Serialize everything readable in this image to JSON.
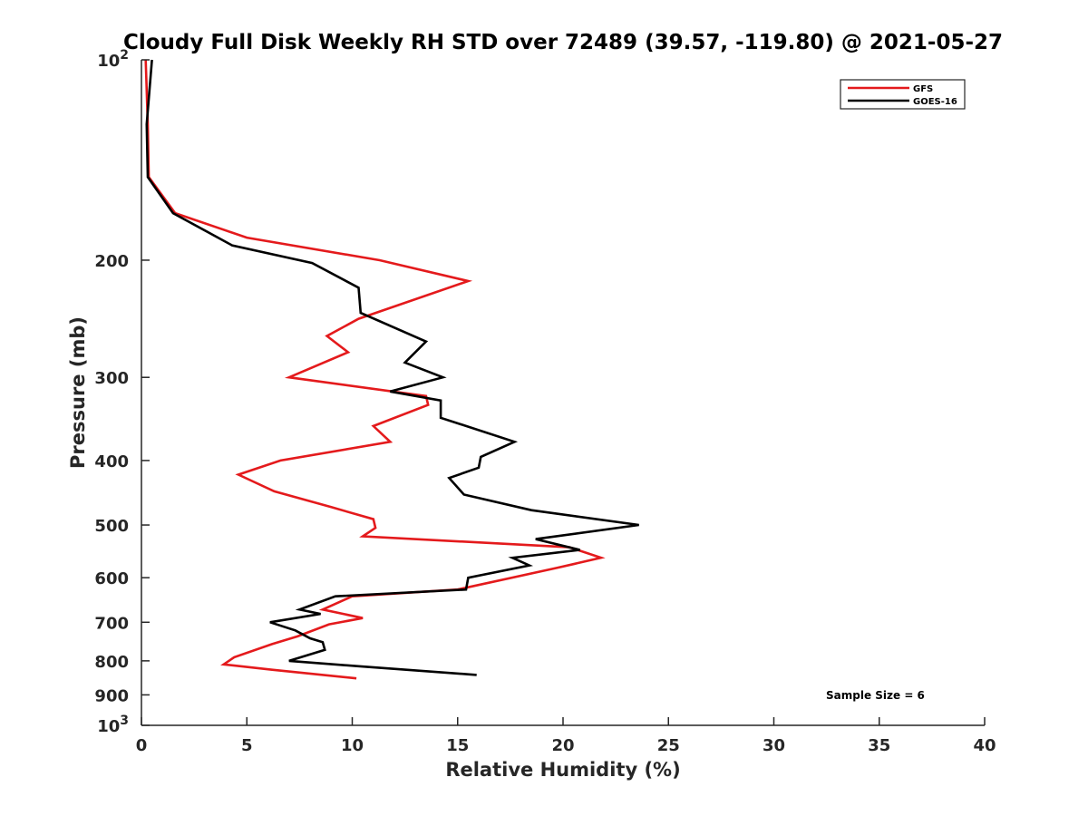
{
  "chart_data": {
    "type": "line",
    "title": "Cloudy Full Disk Weekly RH STD over 72489 (39.57, -119.80) @ 2021-05-27",
    "xlabel": "Relative Humidity (%)",
    "ylabel": "Pressure (mb)",
    "xlim": [
      0,
      40
    ],
    "ylim": [
      100,
      1000
    ],
    "y_scale": "log",
    "y_reversed": true,
    "grid": false,
    "legend_position": "top-right",
    "x_ticks": [
      "0",
      "5",
      "10",
      "15",
      "20",
      "25",
      "30",
      "35",
      "40"
    ],
    "y_ticks": [
      {
        "value": 100,
        "base": "10",
        "exp": "2"
      },
      {
        "value": 200,
        "label": "200"
      },
      {
        "value": 300,
        "label": "300"
      },
      {
        "value": 400,
        "label": "400"
      },
      {
        "value": 500,
        "label": "500"
      },
      {
        "value": 600,
        "label": "600"
      },
      {
        "value": 700,
        "label": "700"
      },
      {
        "value": 800,
        "label": "800"
      },
      {
        "value": 900,
        "label": "900"
      },
      {
        "value": 1000,
        "base": "10",
        "exp": "3"
      }
    ],
    "series": [
      {
        "name": "GFS",
        "color": "#e41a1c",
        "points": [
          [
            0.2,
            100
          ],
          [
            0.3,
            125
          ],
          [
            0.35,
            150
          ],
          [
            1.6,
            170
          ],
          [
            5.0,
            185
          ],
          [
            11.3,
            200
          ],
          [
            15.5,
            215
          ],
          [
            10.3,
            245
          ],
          [
            8.8,
            260
          ],
          [
            9.8,
            275
          ],
          [
            7.0,
            300
          ],
          [
            13.5,
            320
          ],
          [
            13.6,
            330
          ],
          [
            11.0,
            355
          ],
          [
            11.8,
            375
          ],
          [
            6.6,
            400
          ],
          [
            4.6,
            420
          ],
          [
            6.3,
            445
          ],
          [
            9.0,
            470
          ],
          [
            11.0,
            490
          ],
          [
            11.1,
            505
          ],
          [
            10.5,
            520
          ],
          [
            20.3,
            540
          ],
          [
            21.8,
            560
          ],
          [
            19.7,
            580
          ],
          [
            15.0,
            625
          ],
          [
            10.0,
            640
          ],
          [
            8.6,
            670
          ],
          [
            10.5,
            690
          ],
          [
            8.9,
            705
          ],
          [
            7.4,
            735
          ],
          [
            6.2,
            755
          ],
          [
            4.4,
            790
          ],
          [
            3.9,
            810
          ],
          [
            6.2,
            825
          ],
          [
            10.2,
            850
          ]
        ]
      },
      {
        "name": "GOES-16",
        "color": "#000000",
        "points": [
          [
            0.5,
            100
          ],
          [
            0.25,
            125
          ],
          [
            0.3,
            150
          ],
          [
            1.5,
            170
          ],
          [
            4.3,
            190
          ],
          [
            8.1,
            202
          ],
          [
            10.3,
            220
          ],
          [
            10.4,
            240
          ],
          [
            13.5,
            265
          ],
          [
            12.5,
            285
          ],
          [
            14.3,
            300
          ],
          [
            11.8,
            315
          ],
          [
            14.2,
            325
          ],
          [
            14.2,
            345
          ],
          [
            17.7,
            375
          ],
          [
            16.1,
            395
          ],
          [
            16.0,
            410
          ],
          [
            14.6,
            425
          ],
          [
            15.3,
            450
          ],
          [
            18.5,
            475
          ],
          [
            23.6,
            500
          ],
          [
            18.7,
            525
          ],
          [
            20.8,
            545
          ],
          [
            17.6,
            560
          ],
          [
            18.4,
            575
          ],
          [
            15.5,
            600
          ],
          [
            15.4,
            625
          ],
          [
            9.2,
            640
          ],
          [
            7.5,
            670
          ],
          [
            8.5,
            680
          ],
          [
            6.1,
            700
          ],
          [
            7.3,
            720
          ],
          [
            8.0,
            740
          ],
          [
            8.6,
            750
          ],
          [
            8.7,
            770
          ],
          [
            7.0,
            800
          ],
          [
            10.3,
            815
          ],
          [
            15.9,
            840
          ]
        ]
      }
    ],
    "annotation": "Sample Size = 6"
  }
}
